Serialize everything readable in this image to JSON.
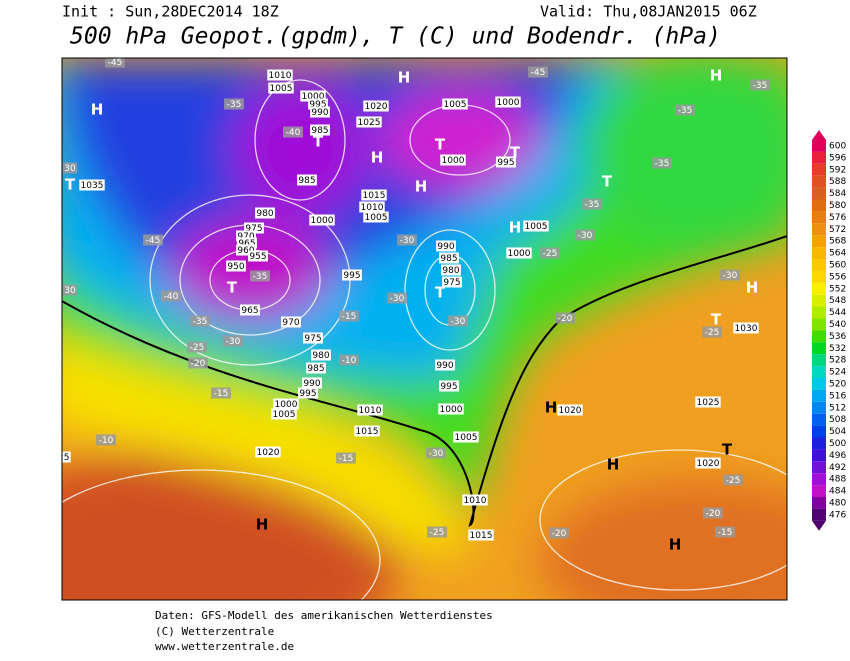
{
  "header": {
    "init": "Init : Sun,28DEC2014 18Z",
    "valid": "Valid: Thu,08JAN2015 06Z",
    "title": "500 hPa Geopot.(gpdm), T (C) und Bodendr. (hPa)"
  },
  "colorbar": {
    "ticks": [
      600,
      596,
      592,
      588,
      584,
      580,
      576,
      572,
      568,
      564,
      560,
      556,
      552,
      548,
      544,
      540,
      536,
      532,
      528,
      524,
      520,
      516,
      512,
      508,
      504,
      500,
      496,
      492,
      488,
      484,
      480,
      476
    ],
    "colors": [
      "#e0005a",
      "#e8203a",
      "#e83c28",
      "#e05020",
      "#d86020",
      "#e06e10",
      "#e87e10",
      "#f09010",
      "#f4a400",
      "#f8b800",
      "#fcc800",
      "#fcd800",
      "#f8f000",
      "#d8f000",
      "#b0ec00",
      "#80e400",
      "#40dc00",
      "#00d820",
      "#00d880",
      "#00d8c0",
      "#00c8e8",
      "#00a8f0",
      "#0088f0",
      "#0060f0",
      "#0040e8",
      "#2020e0",
      "#4010d8",
      "#7010d8",
      "#a010d8",
      "#c010c8",
      "#8000a0",
      "#500070"
    ]
  },
  "map": {
    "labels": [
      "H",
      "H",
      "H",
      "H",
      "H",
      "H",
      "H",
      "H",
      "H",
      "H",
      "H",
      "T",
      "T",
      "T",
      "T",
      "T",
      "T",
      "T",
      "T",
      "T",
      "1010",
      "1005",
      "1000",
      "995",
      "990",
      "985",
      "1020",
      "1025",
      "1005",
      "1000",
      "1000",
      "995",
      "1035",
      "985",
      "1015",
      "1010",
      "1005",
      "980",
      "975",
      "970",
      "965",
      "960",
      "955",
      "950",
      "965",
      "970",
      "975",
      "980",
      "985",
      "990",
      "995",
      "1000",
      "1005",
      "1000",
      "995",
      "990",
      "985",
      "980",
      "975",
      "1005",
      "1000",
      "990",
      "995",
      "1000",
      "1010",
      "1015",
      "1005",
      "1020",
      "1025",
      "1010",
      "1015",
      "1020",
      "1025",
      "1020",
      "1030",
      "-45",
      "-35",
      "-40",
      "-45",
      "-35",
      "-35",
      "-35",
      "-35",
      "-30",
      "-30",
      "-25",
      "-30",
      "-45",
      "-35",
      "-40",
      "-35",
      "-30",
      "-25",
      "-20",
      "-10",
      "-15",
      "-30",
      "-30",
      "-20",
      "-25",
      "-15",
      "-10",
      "-10",
      "-15",
      "-30",
      "-25",
      "-20",
      "-20",
      "-15",
      "-25",
      "30",
      "30"
    ]
  },
  "footer": {
    "line1": "Daten: GFS-Modell des amerikanischen Wetterdienstes",
    "line2": "(C) Wetterzentrale",
    "line3": "www.wetterzentrale.de"
  }
}
